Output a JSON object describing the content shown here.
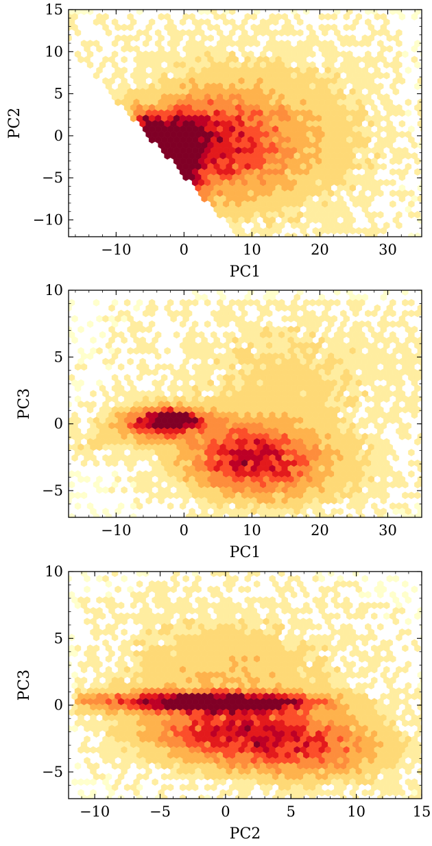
{
  "chart_data": [
    {
      "type": "heatmap",
      "subtype": "hexbin",
      "xlabel": "PC1",
      "ylabel": "PC2",
      "xlim": [
        -17,
        35
      ],
      "ylim": [
        -12,
        15
      ],
      "xticks": [
        -10,
        0,
        10,
        20,
        30
      ],
      "yticks": [
        -10,
        -5,
        0,
        5,
        10,
        15
      ],
      "xtick_labels": [
        "−10",
        "0",
        "10",
        "20",
        "30"
      ],
      "ytick_labels": [
        "−10",
        "−5",
        "0",
        "5",
        "10",
        "15"
      ],
      "colormap": [
        "#ffffcc",
        "#ffeda0",
        "#fed976",
        "#feb24c",
        "#fd8d3c",
        "#fc4e2a",
        "#e31a1c",
        "#bd0026",
        "#800026"
      ],
      "density_ridge": [
        {
          "x": -4,
          "y": 1.5
        },
        {
          "x": -2,
          "y": -2
        },
        {
          "x": 2,
          "y": -5
        }
      ]
    },
    {
      "type": "heatmap",
      "subtype": "hexbin",
      "xlabel": "PC1",
      "ylabel": "PC3",
      "xlim": [
        -17,
        35
      ],
      "ylim": [
        -7,
        10
      ],
      "xticks": [
        -10,
        0,
        10,
        20,
        30
      ],
      "yticks": [
        -5,
        0,
        5,
        10
      ],
      "xtick_labels": [
        "−10",
        "0",
        "10",
        "20",
        "30"
      ],
      "ytick_labels": [
        "−5",
        "0",
        "5",
        "10"
      ],
      "colormap": [
        "#ffffcc",
        "#ffeda0",
        "#fed976",
        "#feb24c",
        "#fd8d3c",
        "#fc4e2a",
        "#e31a1c",
        "#bd0026",
        "#800026"
      ],
      "density_peak": {
        "x": -2,
        "y": 0.3
      }
    },
    {
      "type": "heatmap",
      "subtype": "hexbin",
      "xlabel": "PC2",
      "ylabel": "PC3",
      "xlim": [
        -12,
        15
      ],
      "ylim": [
        -7,
        10
      ],
      "xticks": [
        -10,
        -5,
        0,
        5,
        10,
        15
      ],
      "yticks": [
        -5,
        0,
        5,
        10
      ],
      "xtick_labels": [
        "−10",
        "−5",
        "0",
        "5",
        "10",
        "15"
      ],
      "ytick_labels": [
        "−5",
        "0",
        "5",
        "10"
      ],
      "colormap": [
        "#ffffcc",
        "#ffeda0",
        "#fed976",
        "#feb24c",
        "#fd8d3c",
        "#fc4e2a",
        "#e31a1c",
        "#bd0026",
        "#800026"
      ],
      "density_peak": {
        "x": 0,
        "y": 0.2
      }
    }
  ]
}
